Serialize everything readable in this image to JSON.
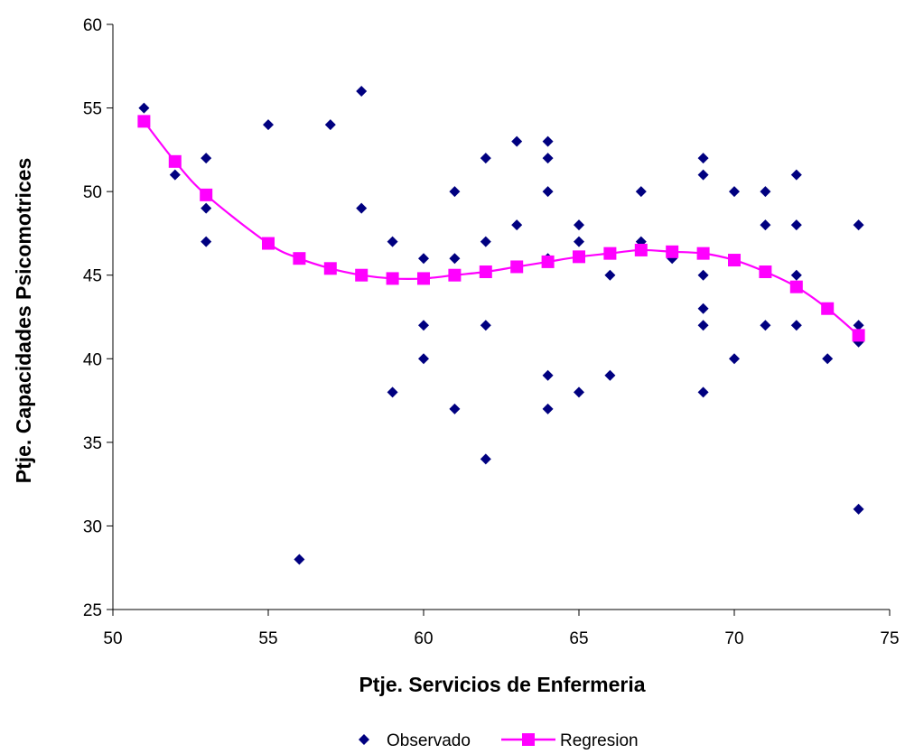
{
  "chart_data": {
    "type": "scatter",
    "title": "",
    "xlabel": "Ptje.  Servicios de Enfermeria",
    "ylabel": "Ptje. Capacidades Psicomotrices",
    "xlim": [
      50,
      75
    ],
    "ylim": [
      25,
      60
    ],
    "xticks": [
      50,
      55,
      60,
      65,
      70,
      75
    ],
    "yticks": [
      25,
      30,
      35,
      40,
      45,
      50,
      55,
      60
    ],
    "grid": false,
    "legend_position": "bottom",
    "series": [
      {
        "name": "Observado",
        "kind": "scatter",
        "marker": "diamond",
        "color": "#000080",
        "points": [
          [
            51,
            55
          ],
          [
            52,
            51
          ],
          [
            53,
            52
          ],
          [
            53,
            49
          ],
          [
            53,
            47
          ],
          [
            55,
            54
          ],
          [
            56,
            28
          ],
          [
            57,
            54
          ],
          [
            58,
            56
          ],
          [
            58,
            49
          ],
          [
            59,
            47
          ],
          [
            59,
            38
          ],
          [
            60,
            46
          ],
          [
            60,
            42
          ],
          [
            60,
            40
          ],
          [
            61,
            50
          ],
          [
            61,
            46
          ],
          [
            61,
            37
          ],
          [
            62,
            52
          ],
          [
            62,
            47
          ],
          [
            62,
            42
          ],
          [
            62,
            34
          ],
          [
            63,
            53
          ],
          [
            63,
            48
          ],
          [
            64,
            53
          ],
          [
            64,
            52
          ],
          [
            64,
            50
          ],
          [
            64,
            46
          ],
          [
            64,
            39
          ],
          [
            64,
            37
          ],
          [
            65,
            48
          ],
          [
            65,
            47
          ],
          [
            65,
            38
          ],
          [
            66,
            45
          ],
          [
            66,
            39
          ],
          [
            67,
            50
          ],
          [
            67,
            47
          ],
          [
            68,
            46
          ],
          [
            69,
            52
          ],
          [
            69,
            51
          ],
          [
            69,
            45
          ],
          [
            69,
            43
          ],
          [
            69,
            42
          ],
          [
            69,
            38
          ],
          [
            70,
            50
          ],
          [
            70,
            40
          ],
          [
            71,
            50
          ],
          [
            71,
            48
          ],
          [
            71,
            42
          ],
          [
            72,
            51
          ],
          [
            72,
            48
          ],
          [
            72,
            45
          ],
          [
            72,
            42
          ],
          [
            73,
            40
          ],
          [
            74,
            48
          ],
          [
            74,
            42
          ],
          [
            74,
            41
          ],
          [
            74,
            31
          ]
        ]
      },
      {
        "name": "Regresion",
        "kind": "line",
        "marker": "square",
        "color": "#FF00FF",
        "points": [
          [
            51,
            54.2
          ],
          [
            52,
            51.8
          ],
          [
            53,
            49.8
          ],
          [
            55,
            46.9
          ],
          [
            56,
            46.0
          ],
          [
            57,
            45.4
          ],
          [
            58,
            45.0
          ],
          [
            59,
            44.8
          ],
          [
            60,
            44.8
          ],
          [
            61,
            45.0
          ],
          [
            62,
            45.2
          ],
          [
            63,
            45.5
          ],
          [
            64,
            45.8
          ],
          [
            65,
            46.1
          ],
          [
            66,
            46.3
          ],
          [
            67,
            46.5
          ],
          [
            68,
            46.4
          ],
          [
            69,
            46.3
          ],
          [
            70,
            45.9
          ],
          [
            71,
            45.2
          ],
          [
            72,
            44.3
          ],
          [
            73,
            43.0
          ],
          [
            74,
            41.4
          ]
        ]
      }
    ]
  }
}
